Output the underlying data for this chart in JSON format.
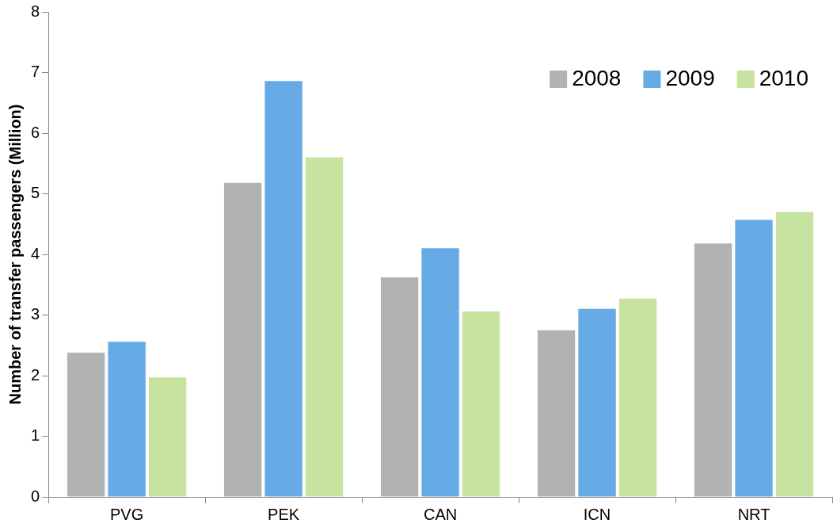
{
  "chart_data": {
    "type": "bar",
    "ylabel": "Number of transfer passengers (Million)",
    "categories": [
      "PVG",
      "PEK",
      "CAN",
      "ICN",
      "NRT"
    ],
    "series": [
      {
        "name": "2008",
        "color": "#b2b2b2",
        "values": [
          2.38,
          5.18,
          3.62,
          2.75,
          4.18
        ]
      },
      {
        "name": "2009",
        "color": "#66aae6",
        "values": [
          2.56,
          6.86,
          4.1,
          3.1,
          4.57
        ]
      },
      {
        "name": "2010",
        "color": "#c6e3a0",
        "values": [
          1.97,
          5.6,
          3.06,
          3.27,
          4.7
        ]
      }
    ],
    "ylim": [
      0,
      8
    ],
    "yticks": [
      0,
      1,
      2,
      3,
      4,
      5,
      6,
      7,
      8
    ],
    "grid": false,
    "legend": "top right"
  }
}
